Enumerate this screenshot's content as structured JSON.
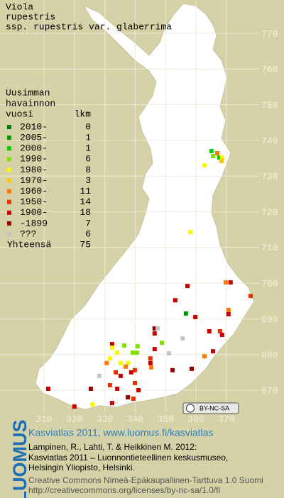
{
  "title": [
    "Viola",
    "rupestris",
    "ssp. rupestris var. glaberrima"
  ],
  "legend": {
    "header": [
      "Uusimman",
      "havainnon",
      "vuosi"
    ],
    "count_header": "lkm",
    "items": [
      {
        "label": "2010-",
        "count": 0,
        "color": "#007a00"
      },
      {
        "label": "2005-",
        "count": 1,
        "color": "#009a00"
      },
      {
        "label": "2000-",
        "count": 1,
        "color": "#00d000"
      },
      {
        "label": "1990-",
        "count": 6,
        "color": "#80e000"
      },
      {
        "label": "1980-",
        "count": 8,
        "color": "#f8f800"
      },
      {
        "label": "1970-",
        "count": 3,
        "color": "#ffc800"
      },
      {
        "label": "1960-",
        "count": 11,
        "color": "#ff7800"
      },
      {
        "label": "1950-",
        "count": 14,
        "color": "#e83000"
      },
      {
        "label": "1900-",
        "count": 18,
        "color": "#c80000"
      },
      {
        "label": "-1899",
        "count": 7,
        "color": "#960000"
      },
      {
        "label": "???",
        "count": 6,
        "color": "#c4c4c4"
      }
    ],
    "total_label": "Yhteensä",
    "total": 75
  },
  "grid": {
    "xlim": [
      300,
      380
    ],
    "ylim": [
      660,
      780
    ],
    "xticks": [
      310,
      320,
      330,
      340,
      350,
      360,
      370
    ],
    "yticks": [
      670,
      680,
      690,
      700,
      710,
      720,
      730,
      740,
      750,
      760,
      770
    ]
  },
  "points": [
    {
      "x": 365.1,
      "y": 737.0,
      "class": 2
    },
    {
      "x": 365.6,
      "y": 735.6,
      "class": 3
    },
    {
      "x": 367.0,
      "y": 736.4,
      "class": 6
    },
    {
      "x": 367.7,
      "y": 735.2,
      "class": 2
    },
    {
      "x": 368.6,
      "y": 735.2,
      "class": 4
    },
    {
      "x": 368.4,
      "y": 734.2,
      "class": 5
    },
    {
      "x": 362.8,
      "y": 733.0,
      "class": 4
    },
    {
      "x": 358.1,
      "y": 714.3,
      "class": 4
    },
    {
      "x": 369.8,
      "y": 700.2,
      "class": 6
    },
    {
      "x": 371.4,
      "y": 700.2,
      "class": 8
    },
    {
      "x": 378.0,
      "y": 696.4,
      "class": 7
    },
    {
      "x": 357.2,
      "y": 699.2,
      "class": 8
    },
    {
      "x": 353.2,
      "y": 695.2,
      "class": 8
    },
    {
      "x": 356.7,
      "y": 691.5,
      "class": 1
    },
    {
      "x": 359.8,
      "y": 690.5,
      "class": 8
    },
    {
      "x": 370.7,
      "y": 692.5,
      "class": 6
    },
    {
      "x": 370.7,
      "y": 691.3,
      "class": 8
    },
    {
      "x": 367.9,
      "y": 686.5,
      "class": 7
    },
    {
      "x": 364.4,
      "y": 686.5,
      "class": 8
    },
    {
      "x": 368.6,
      "y": 685.5,
      "class": 8
    },
    {
      "x": 355.6,
      "y": 684.5,
      "class": 10
    },
    {
      "x": 346.4,
      "y": 687.3,
      "class": 9
    },
    {
      "x": 346.4,
      "y": 685.9,
      "class": 8
    },
    {
      "x": 347.4,
      "y": 687.3,
      "class": 10
    },
    {
      "x": 348.8,
      "y": 683.3,
      "class": 3
    },
    {
      "x": 340.8,
      "y": 682.3,
      "class": 3
    },
    {
      "x": 336.4,
      "y": 682.5,
      "class": 3
    },
    {
      "x": 332.4,
      "y": 682.9,
      "class": 8
    },
    {
      "x": 332.4,
      "y": 681.9,
      "class": 4
    },
    {
      "x": 334.1,
      "y": 680.5,
      "class": 4
    },
    {
      "x": 339.2,
      "y": 680.5,
      "class": 3
    },
    {
      "x": 340.6,
      "y": 680.5,
      "class": 3
    },
    {
      "x": 346.4,
      "y": 681.5,
      "class": 8
    },
    {
      "x": 365.6,
      "y": 680.9,
      "class": 8
    },
    {
      "x": 362.8,
      "y": 679.5,
      "class": 6
    },
    {
      "x": 351.1,
      "y": 680.3,
      "class": 10
    },
    {
      "x": 331.7,
      "y": 678.9,
      "class": 4
    },
    {
      "x": 335.2,
      "y": 677.6,
      "class": 4
    },
    {
      "x": 337.6,
      "y": 677.6,
      "class": 4
    },
    {
      "x": 336.9,
      "y": 676.6,
      "class": 6
    },
    {
      "x": 339.9,
      "y": 675.6,
      "class": 7
    },
    {
      "x": 338.7,
      "y": 675.0,
      "class": 8
    },
    {
      "x": 345.0,
      "y": 678.9,
      "class": 7
    },
    {
      "x": 345.0,
      "y": 677.6,
      "class": 8
    },
    {
      "x": 345.3,
      "y": 676.4,
      "class": 6
    },
    {
      "x": 333.6,
      "y": 675.0,
      "class": 7
    },
    {
      "x": 335.2,
      "y": 674.0,
      "class": 8
    },
    {
      "x": 352.3,
      "y": 675.6,
      "class": 9
    },
    {
      "x": 330.6,
      "y": 677.6,
      "class": 6
    },
    {
      "x": 358.6,
      "y": 676.0,
      "class": 9
    },
    {
      "x": 328.2,
      "y": 674.0,
      "class": 10
    },
    {
      "x": 331.7,
      "y": 671.4,
      "class": 7
    },
    {
      "x": 339.9,
      "y": 672.0,
      "class": 7
    },
    {
      "x": 334.1,
      "y": 670.4,
      "class": 8
    },
    {
      "x": 341.1,
      "y": 670.0,
      "class": 8
    },
    {
      "x": 325.4,
      "y": 670.4,
      "class": 9
    },
    {
      "x": 311.4,
      "y": 670.4,
      "class": 8
    },
    {
      "x": 339.4,
      "y": 667.6,
      "class": 7
    },
    {
      "x": 337.6,
      "y": 668.0,
      "class": 9
    },
    {
      "x": 332.4,
      "y": 666.4,
      "class": 8
    },
    {
      "x": 325.9,
      "y": 666.0,
      "class": 4
    },
    {
      "x": 320.0,
      "y": 665.4,
      "class": 8
    }
  ],
  "license_badge": "BY-NC-SA",
  "footer": {
    "logo": "LUOMUS",
    "link": "Kasviatlas 2011, www.luomus.fi/kasviatlas",
    "citation": [
      "Lampinen, R., Lahti, T. & Heikkinen M. 2012:",
      "Kasviatlas 2011 – Luonnontieteellinen keskusmuseo,",
      "Helsingin Yliopisto, Helsinki."
    ],
    "license": [
      "Creative Commons Nimeä-Epäkaupallinen-Tarttuva 1.0 Suomi",
      "http://creativecommons.org/licenses/by-nc-sa/1.0/fi"
    ]
  }
}
